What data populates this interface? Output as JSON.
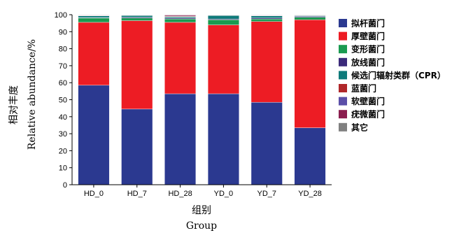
{
  "chart_data": {
    "type": "bar",
    "stacked": true,
    "categories": [
      "HD_0",
      "HD_7",
      "HD_28",
      "YD_0",
      "YD_7",
      "YD_28"
    ],
    "ylim": [
      0,
      100
    ],
    "yticks": [
      0,
      10,
      20,
      30,
      40,
      50,
      60,
      70,
      80,
      90,
      100
    ],
    "ylabel_zh": "相对丰度",
    "ylabel_en": "Relative abundance/%",
    "xlabel_zh": "组别",
    "xlabel_en": "Group",
    "grid": false,
    "legend_position": "right",
    "series": [
      {
        "name": "拟杆菌门",
        "color": "#2b3990",
        "values": [
          58.5,
          44.5,
          53.5,
          53.5,
          48.5,
          33.5
        ]
      },
      {
        "name": "厚壁菌门",
        "color": "#ed1c24",
        "values": [
          37.0,
          52.0,
          42.0,
          40.5,
          47.5,
          63.5
        ]
      },
      {
        "name": "变形菌门",
        "color": "#1a9a50",
        "values": [
          2.5,
          1.5,
          2.0,
          3.0,
          1.5,
          1.5
        ]
      },
      {
        "name": "放线菌门",
        "color": "#3b2a7a",
        "values": [
          0.3,
          0.5,
          0.5,
          0.5,
          0.6,
          0.5
        ]
      },
      {
        "name": "候选门辐射类群（CPR）",
        "color": "#0e7a7a",
        "values": [
          1.0,
          1.0,
          0.7,
          2.0,
          1.2,
          0.4
        ]
      },
      {
        "name": "蓝菌门",
        "color": "#b0272a",
        "values": [
          0.2,
          0.2,
          0.3,
          0.2,
          0.2,
          0.2
        ]
      },
      {
        "name": "软壁菌门",
        "color": "#5b4fa8",
        "values": [
          0.1,
          0.1,
          0.2,
          0.1,
          0.2,
          0.1
        ]
      },
      {
        "name": "疣微菌门",
        "color": "#8b1e4f",
        "values": [
          0.2,
          0.1,
          0.6,
          0.1,
          0.2,
          0.2
        ]
      },
      {
        "name": "其它",
        "color": "#808080",
        "values": [
          0.2,
          0.1,
          0.2,
          0.1,
          0.1,
          0.1
        ]
      }
    ]
  }
}
